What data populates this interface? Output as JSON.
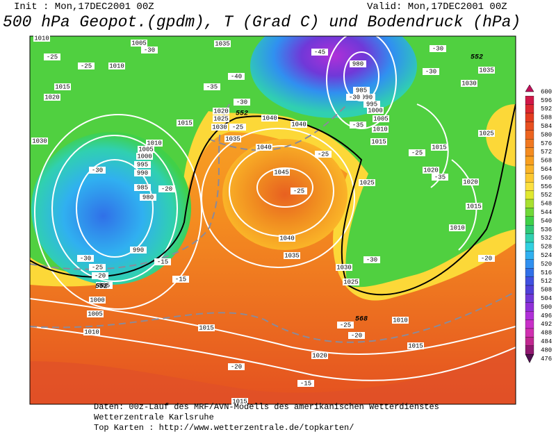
{
  "header": {
    "init": "Init : Mon,17DEC2001 00Z",
    "valid": "Valid: Mon,17DEC2001 00Z",
    "title": "500 hPa Geopot.(gpdm), T (Grad C) und Bodendruck (hPa)"
  },
  "map": {
    "pressure_labels": [
      1010,
      1005,
      1035,
      980,
      985,
      990,
      995,
      1000,
      1005,
      1010,
      1015,
      1035,
      1030,
      1015,
      1020,
      1010,
      1015,
      1020,
      1025,
      1030,
      1040,
      1040,
      1035,
      1040,
      1045,
      1030,
      1010,
      1005,
      1000,
      995,
      990,
      985,
      980,
      1025,
      1025,
      1015,
      1020,
      1020,
      1015,
      1010,
      1040,
      1035,
      1030,
      1025,
      990,
      995,
      1000,
      1005,
      1010,
      1015,
      1010,
      1015,
      1020,
      1015
    ],
    "temperature_labels": [
      -25,
      -30,
      -25,
      -35,
      -40,
      -30,
      -25,
      -45,
      -35,
      -30,
      -25,
      -25,
      -25,
      -30,
      -30,
      -35,
      -30,
      -20,
      -30,
      -25,
      -20,
      -15,
      -15,
      -20,
      -30,
      -25,
      -20,
      -20,
      -15
    ],
    "geopotential_labels": [
      552,
      552,
      552,
      568
    ]
  },
  "colorbar": {
    "ticks": [
      600,
      596,
      592,
      588,
      584,
      580,
      576,
      572,
      568,
      564,
      560,
      556,
      552,
      548,
      544,
      540,
      536,
      532,
      528,
      524,
      520,
      516,
      512,
      508,
      504,
      500,
      496,
      492,
      488,
      484,
      480,
      476
    ],
    "colors": [
      "#c0105a",
      "#d01848",
      "#dc2830",
      "#e43c20",
      "#e85020",
      "#ec6420",
      "#f07820",
      "#f48c20",
      "#f8a020",
      "#fab428",
      "#fcc830",
      "#fce040",
      "#e0e830",
      "#a8e030",
      "#70d838",
      "#40d048",
      "#30c878",
      "#30d0b0",
      "#30d0e0",
      "#30b0f0",
      "#3090f0",
      "#3070e8",
      "#4050e0",
      "#5040d8",
      "#7038d8",
      "#9030d8",
      "#b030d8",
      "#c830c8",
      "#d030b0",
      "#c02890",
      "#901870",
      "#501050"
    ]
  },
  "footer": {
    "lines": [
      "Daten: 00z-Lauf des MRF/AVN-Modells des amerikanischen Wetterdienstes",
      "Wetterzentrale Karlsruhe",
      "Top Karten :  http://www.wetterzentrale.de/topkarten/"
    ]
  }
}
